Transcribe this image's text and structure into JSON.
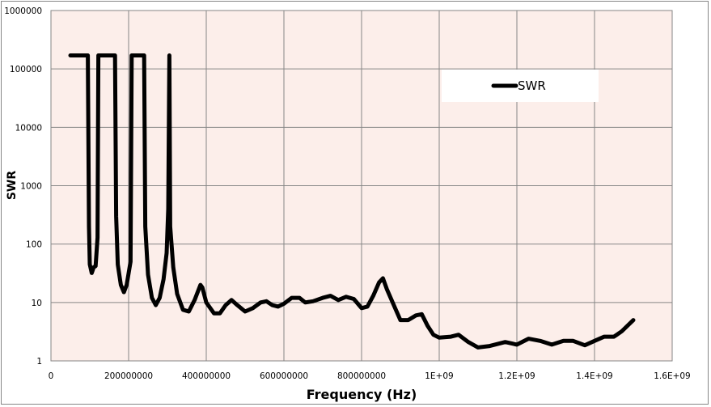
{
  "chart_data": {
    "type": "line",
    "title": "",
    "xlabel": "Frequency (Hz)",
    "ylabel": "SWR",
    "xscale": "linear",
    "yscale": "log",
    "xlim": [
      0,
      1600000000
    ],
    "ylim": [
      1,
      1000000
    ],
    "grid": true,
    "legend_position": "upper right (inside plot)",
    "plot_background": "#FCEEEA",
    "x_tick_labels": [
      "0",
      "200000000",
      "400000000",
      "600000000",
      "800000000",
      "1E+09",
      "1.2E+09",
      "1.4E+09",
      "1.6E+09"
    ],
    "y_tick_labels": [
      "1",
      "10",
      "100",
      "1000",
      "10000",
      "100000",
      "1000000"
    ],
    "series": [
      {
        "name": "SWR",
        "color": "#000000",
        "points": [
          [
            50000000,
            170000
          ],
          [
            95000000,
            170000
          ],
          [
            98000000,
            200
          ],
          [
            100000000,
            45
          ],
          [
            105000000,
            32
          ],
          [
            110000000,
            40
          ],
          [
            115000000,
            42
          ],
          [
            120000000,
            130
          ],
          [
            122000000,
            170000
          ],
          [
            165000000,
            170000
          ],
          [
            168000000,
            300
          ],
          [
            172000000,
            45
          ],
          [
            180000000,
            20
          ],
          [
            188000000,
            15
          ],
          [
            195000000,
            20
          ],
          [
            205000000,
            50
          ],
          [
            208000000,
            170000
          ],
          [
            240000000,
            170000
          ],
          [
            243000000,
            200
          ],
          [
            250000000,
            30
          ],
          [
            260000000,
            12
          ],
          [
            270000000,
            9
          ],
          [
            280000000,
            12
          ],
          [
            290000000,
            25
          ],
          [
            298000000,
            70
          ],
          [
            302000000,
            400
          ],
          [
            305000000,
            170000
          ],
          [
            307000000,
            200
          ],
          [
            315000000,
            40
          ],
          [
            325000000,
            14
          ],
          [
            340000000,
            7.5
          ],
          [
            355000000,
            7
          ],
          [
            370000000,
            11
          ],
          [
            385000000,
            20
          ],
          [
            390000000,
            18
          ],
          [
            400000000,
            10
          ],
          [
            420000000,
            6.5
          ],
          [
            435000000,
            6.5
          ],
          [
            450000000,
            9
          ],
          [
            465000000,
            11
          ],
          [
            480000000,
            9
          ],
          [
            500000000,
            7
          ],
          [
            520000000,
            8
          ],
          [
            540000000,
            10
          ],
          [
            555000000,
            10.5
          ],
          [
            570000000,
            9
          ],
          [
            585000000,
            8.5
          ],
          [
            600000000,
            9.5
          ],
          [
            620000000,
            12
          ],
          [
            640000000,
            12
          ],
          [
            655000000,
            10
          ],
          [
            675000000,
            10.5
          ],
          [
            700000000,
            12
          ],
          [
            720000000,
            13
          ],
          [
            740000000,
            11
          ],
          [
            760000000,
            12.5
          ],
          [
            780000000,
            11.5
          ],
          [
            800000000,
            8
          ],
          [
            815000000,
            8.5
          ],
          [
            830000000,
            13
          ],
          [
            845000000,
            22
          ],
          [
            855000000,
            26
          ],
          [
            865000000,
            17
          ],
          [
            880000000,
            10
          ],
          [
            900000000,
            5
          ],
          [
            920000000,
            5
          ],
          [
            940000000,
            6
          ],
          [
            955000000,
            6.3
          ],
          [
            970000000,
            4
          ],
          [
            985000000,
            2.8
          ],
          [
            1000000000,
            2.5
          ],
          [
            1030000000,
            2.6
          ],
          [
            1050000000,
            2.8
          ],
          [
            1075000000,
            2.1
          ],
          [
            1100000000,
            1.7
          ],
          [
            1130000000,
            1.8
          ],
          [
            1170000000,
            2.1
          ],
          [
            1200000000,
            1.9
          ],
          [
            1230000000,
            2.4
          ],
          [
            1260000000,
            2.2
          ],
          [
            1290000000,
            1.9
          ],
          [
            1320000000,
            2.2
          ],
          [
            1345000000,
            2.2
          ],
          [
            1375000000,
            1.85
          ],
          [
            1400000000,
            2.2
          ],
          [
            1425000000,
            2.6
          ],
          [
            1450000000,
            2.6
          ],
          [
            1470000000,
            3.2
          ],
          [
            1500000000,
            5
          ]
        ]
      }
    ]
  },
  "legend": {
    "series_label": "SWR"
  },
  "axes": {
    "x_title": "Frequency (Hz)",
    "y_title": "SWR"
  }
}
